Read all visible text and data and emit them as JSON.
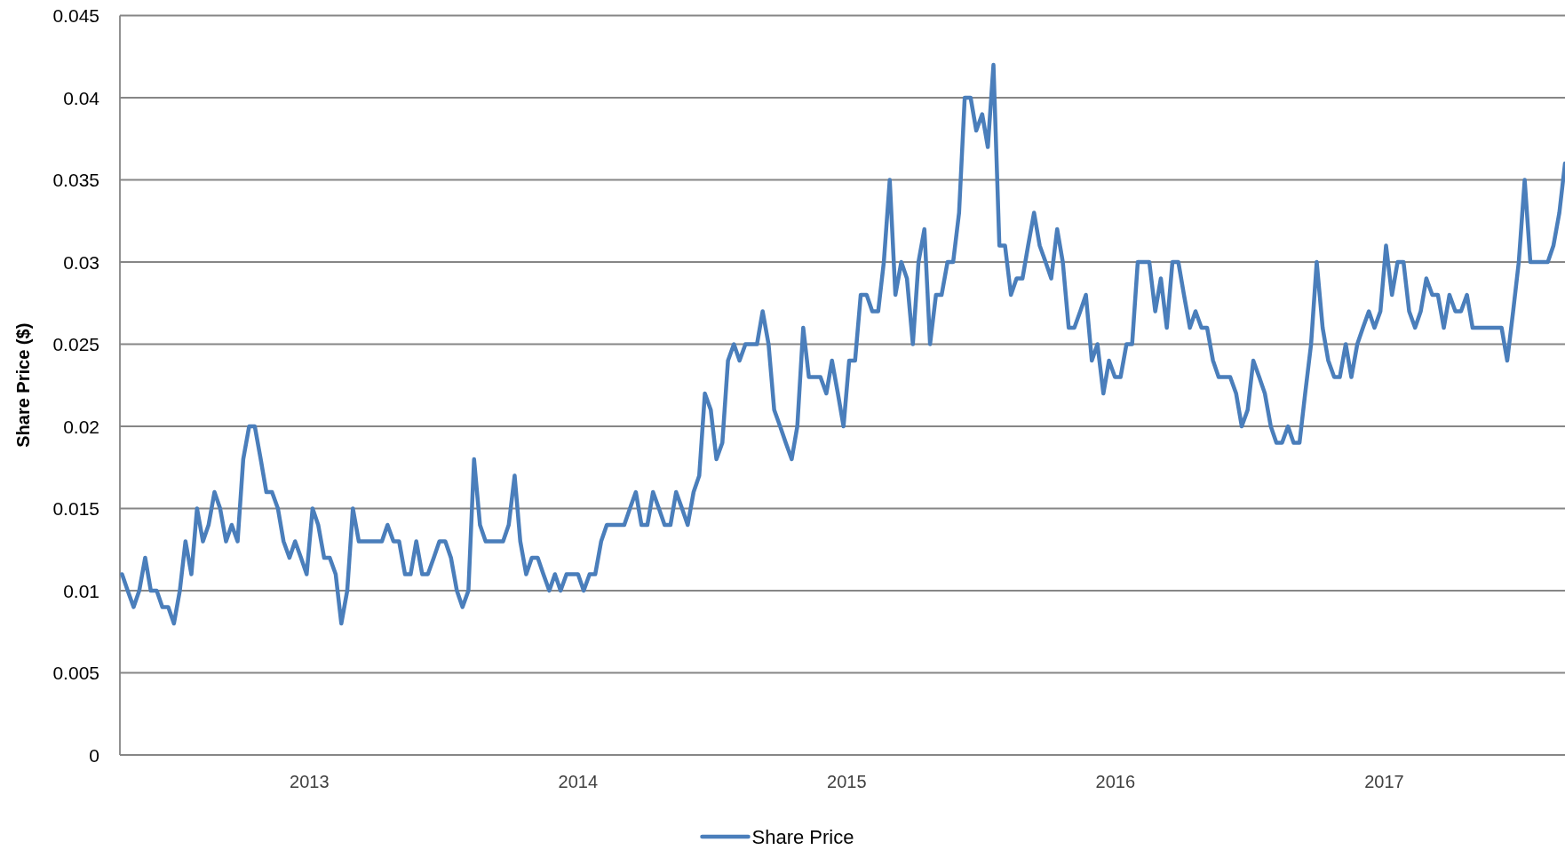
{
  "chart_data": {
    "type": "line",
    "ylabel": "Share Price ($)",
    "x": [
      2012.303,
      2012.324,
      2012.346,
      2012.367,
      2012.389,
      2012.41,
      2012.432,
      2012.453,
      2012.475,
      2012.496,
      2012.518,
      2012.539,
      2012.561,
      2012.582,
      2012.604,
      2012.625,
      2012.647,
      2012.668,
      2012.69,
      2012.711,
      2012.733,
      2012.754,
      2012.776,
      2012.797,
      2012.819,
      2012.84,
      2012.861,
      2012.883,
      2012.904,
      2012.926,
      2012.947,
      2012.969,
      2012.99,
      2013.012,
      2013.033,
      2013.055,
      2013.076,
      2013.098,
      2013.119,
      2013.141,
      2013.162,
      2013.184,
      2013.205,
      2013.227,
      2013.248,
      2013.27,
      2013.291,
      2013.313,
      2013.334,
      2013.356,
      2013.377,
      2013.398,
      2013.42,
      2013.441,
      2013.463,
      2013.484,
      2013.506,
      2013.527,
      2013.549,
      2013.57,
      2013.592,
      2013.613,
      2013.635,
      2013.656,
      2013.678,
      2013.699,
      2013.721,
      2013.742,
      2013.764,
      2013.785,
      2013.807,
      2013.828,
      2013.85,
      2013.871,
      2013.893,
      2013.914,
      2013.935,
      2013.957,
      2013.978,
      2014.0,
      2014.021,
      2014.043,
      2014.064,
      2014.086,
      2014.107,
      2014.129,
      2014.15,
      2014.172,
      2014.193,
      2014.215,
      2014.236,
      2014.258,
      2014.279,
      2014.301,
      2014.322,
      2014.344,
      2014.365,
      2014.387,
      2014.408,
      2014.43,
      2014.451,
      2014.472,
      2014.494,
      2014.515,
      2014.537,
      2014.558,
      2014.58,
      2014.601,
      2014.623,
      2014.644,
      2014.666,
      2014.687,
      2014.709,
      2014.73,
      2014.752,
      2014.773,
      2014.795,
      2014.816,
      2014.838,
      2014.859,
      2014.881,
      2014.902,
      2014.924,
      2014.945,
      2014.967,
      2014.988,
      2015.009,
      2015.031,
      2015.052,
      2015.074,
      2015.095,
      2015.117,
      2015.138,
      2015.16,
      2015.181,
      2015.203,
      2015.224,
      2015.246,
      2015.267,
      2015.289,
      2015.31,
      2015.332,
      2015.353,
      2015.375,
      2015.396,
      2015.418,
      2015.439,
      2015.461,
      2015.482,
      2015.504,
      2015.525,
      2015.546,
      2015.568,
      2015.589,
      2015.611,
      2015.632,
      2015.654,
      2015.675,
      2015.697,
      2015.718,
      2015.74,
      2015.761,
      2015.783,
      2015.804,
      2015.826,
      2015.847,
      2015.869,
      2015.89,
      2015.912,
      2015.933,
      2015.955,
      2015.976,
      2015.998,
      2016.019,
      2016.041,
      2016.062,
      2016.083,
      2016.105,
      2016.126,
      2016.148,
      2016.169,
      2016.191,
      2016.212,
      2016.234,
      2016.255,
      2016.277,
      2016.298,
      2016.32,
      2016.341,
      2016.363,
      2016.384,
      2016.406,
      2016.427,
      2016.449,
      2016.47,
      2016.492,
      2016.513,
      2016.535,
      2016.556,
      2016.578,
      2016.599,
      2016.62,
      2016.642,
      2016.663,
      2016.685,
      2016.706,
      2016.728,
      2016.749,
      2016.771,
      2016.792,
      2016.814,
      2016.835,
      2016.857,
      2016.878,
      2016.9,
      2016.921,
      2016.943,
      2016.964,
      2016.986,
      2017.007,
      2017.029,
      2017.05,
      2017.072,
      2017.093,
      2017.115,
      2017.136,
      2017.157,
      2017.179,
      2017.2,
      2017.222,
      2017.243,
      2017.265,
      2017.286,
      2017.308,
      2017.329,
      2017.351,
      2017.372,
      2017.394,
      2017.415,
      2017.437,
      2017.458,
      2017.48,
      2017.501,
      2017.523,
      2017.544,
      2017.566,
      2017.587,
      2017.609,
      2017.63,
      2017.652,
      2017.673
    ],
    "series": [
      {
        "name": "Share Price",
        "color": "#4a7ebb",
        "values": [
          0.011,
          0.01,
          0.009,
          0.01,
          0.012,
          0.01,
          0.01,
          0.009,
          0.009,
          0.008,
          0.01,
          0.013,
          0.011,
          0.015,
          0.013,
          0.014,
          0.016,
          0.015,
          0.013,
          0.014,
          0.013,
          0.018,
          0.02,
          0.02,
          0.018,
          0.016,
          0.016,
          0.015,
          0.013,
          0.012,
          0.013,
          0.012,
          0.011,
          0.015,
          0.014,
          0.012,
          0.012,
          0.011,
          0.008,
          0.01,
          0.015,
          0.013,
          0.013,
          0.013,
          0.013,
          0.013,
          0.014,
          0.013,
          0.013,
          0.011,
          0.011,
          0.013,
          0.011,
          0.011,
          0.012,
          0.013,
          0.013,
          0.012,
          0.01,
          0.009,
          0.01,
          0.018,
          0.014,
          0.013,
          0.013,
          0.013,
          0.013,
          0.014,
          0.017,
          0.013,
          0.011,
          0.012,
          0.012,
          0.011,
          0.01,
          0.011,
          0.01,
          0.011,
          0.011,
          0.011,
          0.01,
          0.011,
          0.011,
          0.013,
          0.014,
          0.014,
          0.014,
          0.014,
          0.015,
          0.016,
          0.014,
          0.014,
          0.016,
          0.015,
          0.014,
          0.014,
          0.016,
          0.015,
          0.014,
          0.016,
          0.017,
          0.022,
          0.021,
          0.018,
          0.019,
          0.024,
          0.025,
          0.024,
          0.025,
          0.025,
          0.025,
          0.027,
          0.025,
          0.021,
          0.02,
          0.019,
          0.018,
          0.02,
          0.026,
          0.023,
          0.023,
          0.023,
          0.022,
          0.024,
          0.022,
          0.02,
          0.024,
          0.024,
          0.028,
          0.028,
          0.027,
          0.027,
          0.03,
          0.035,
          0.028,
          0.03,
          0.029,
          0.025,
          0.03,
          0.032,
          0.025,
          0.028,
          0.028,
          0.03,
          0.03,
          0.033,
          0.04,
          0.04,
          0.038,
          0.039,
          0.037,
          0.042,
          0.031,
          0.031,
          0.028,
          0.029,
          0.029,
          0.031,
          0.033,
          0.031,
          0.03,
          0.029,
          0.032,
          0.03,
          0.026,
          0.026,
          0.027,
          0.028,
          0.024,
          0.025,
          0.022,
          0.024,
          0.023,
          0.023,
          0.025,
          0.025,
          0.03,
          0.03,
          0.03,
          0.027,
          0.029,
          0.026,
          0.03,
          0.03,
          0.028,
          0.026,
          0.027,
          0.026,
          0.026,
          0.024,
          0.023,
          0.023,
          0.023,
          0.022,
          0.02,
          0.021,
          0.024,
          0.023,
          0.022,
          0.02,
          0.019,
          0.019,
          0.02,
          0.019,
          0.019,
          0.022,
          0.025,
          0.03,
          0.026,
          0.024,
          0.023,
          0.023,
          0.025,
          0.023,
          0.025,
          0.026,
          0.027,
          0.026,
          0.027,
          0.031,
          0.028,
          0.03,
          0.03,
          0.027,
          0.026,
          0.027,
          0.029,
          0.028,
          0.028,
          0.026,
          0.028,
          0.027,
          0.027,
          0.028,
          0.026,
          0.026,
          0.026,
          0.026,
          0.026,
          0.026,
          0.024,
          0.027,
          0.03,
          0.035,
          0.03,
          0.03,
          0.03,
          0.03,
          0.031,
          0.033,
          0.036
        ]
      }
    ],
    "xlim": [
      2012.295,
      2017.673
    ],
    "xticks": [
      2013,
      2014,
      2015,
      2016,
      2017
    ],
    "ylim": [
      0,
      0.045
    ],
    "yticks": [
      0,
      0.005,
      0.01,
      0.015,
      0.02,
      0.025,
      0.03,
      0.035,
      0.04,
      0.045
    ],
    "grid": "y",
    "legend": "bottom"
  }
}
